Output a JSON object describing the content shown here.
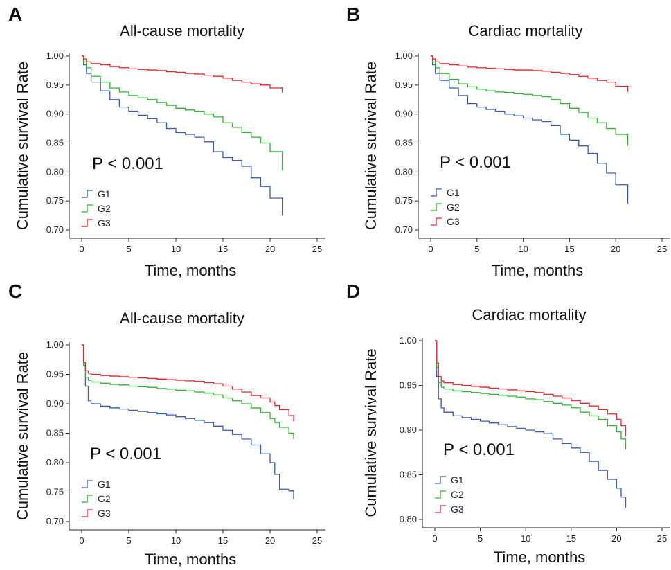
{
  "colors": {
    "G1": "#3a5ab8",
    "G2": "#2bb52b",
    "G3": "#e8262a"
  },
  "chart_data": [
    {
      "panel": "A",
      "type": "line",
      "title": "All-cause mortality",
      "xlabel": "Time, months",
      "ylabel": "Cumulative survival Rate",
      "xlim": [
        0,
        25
      ],
      "ylim": [
        0.7,
        1.0
      ],
      "xticks": [
        0,
        5,
        10,
        15,
        20,
        25
      ],
      "yticks": [
        0.7,
        0.75,
        0.8,
        0.85,
        0.9,
        0.95,
        1.0
      ],
      "annotation": "P < 0.001",
      "legend": [
        "G1",
        "G2",
        "G3"
      ],
      "legend_position": "bottom-left",
      "series": [
        {
          "name": "G1",
          "x": [
            0,
            0.2,
            0.5,
            1,
            2,
            3,
            4,
            5,
            6,
            7,
            8,
            9,
            10,
            11,
            12,
            13,
            14,
            15,
            16,
            17,
            18,
            19,
            20,
            21.3
          ],
          "y": [
            1.0,
            0.985,
            0.97,
            0.955,
            0.94,
            0.925,
            0.912,
            0.905,
            0.898,
            0.892,
            0.885,
            0.875,
            0.868,
            0.865,
            0.86,
            0.852,
            0.835,
            0.825,
            0.82,
            0.81,
            0.79,
            0.775,
            0.755,
            0.725
          ]
        },
        {
          "name": "G2",
          "x": [
            0,
            0.2,
            0.5,
            1,
            2,
            3,
            4,
            5,
            6,
            7,
            8,
            9,
            10,
            11,
            12,
            13,
            14,
            15,
            16,
            17,
            18,
            19,
            20,
            21.3
          ],
          "y": [
            1.0,
            0.99,
            0.98,
            0.965,
            0.955,
            0.945,
            0.938,
            0.932,
            0.928,
            0.925,
            0.92,
            0.915,
            0.91,
            0.907,
            0.905,
            0.9,
            0.895,
            0.885,
            0.877,
            0.868,
            0.86,
            0.85,
            0.835,
            0.803
          ]
        },
        {
          "name": "G3",
          "x": [
            0,
            0.2,
            0.5,
            1,
            2,
            3,
            4,
            5,
            6,
            7,
            8,
            9,
            10,
            11,
            12,
            13,
            14,
            15,
            16,
            17,
            18,
            19,
            20,
            21.3
          ],
          "y": [
            1.0,
            0.995,
            0.99,
            0.987,
            0.985,
            0.982,
            0.98,
            0.978,
            0.977,
            0.976,
            0.975,
            0.973,
            0.972,
            0.97,
            0.969,
            0.967,
            0.965,
            0.962,
            0.958,
            0.955,
            0.952,
            0.95,
            0.945,
            0.937
          ]
        }
      ]
    },
    {
      "panel": "B",
      "type": "line",
      "title": "Cardiac mortality",
      "xlabel": "Time, months",
      "ylabel": "Cumulative survival Rate",
      "xlim": [
        0,
        25
      ],
      "ylim": [
        0.7,
        1.0
      ],
      "xticks": [
        0,
        5,
        10,
        15,
        20,
        25
      ],
      "yticks": [
        0.7,
        0.75,
        0.8,
        0.85,
        0.9,
        0.95,
        1.0
      ],
      "annotation": "P < 0.001",
      "legend": [
        "G1",
        "G2",
        "G3"
      ],
      "legend_position": "bottom-left",
      "series": [
        {
          "name": "G1",
          "x": [
            0,
            0.2,
            0.5,
            1,
            2,
            3,
            4,
            5,
            6,
            7,
            8,
            9,
            10,
            11,
            12,
            13,
            14,
            15,
            16,
            17,
            18,
            19,
            20,
            21.3
          ],
          "y": [
            1.0,
            0.985,
            0.97,
            0.958,
            0.945,
            0.932,
            0.918,
            0.912,
            0.908,
            0.905,
            0.9,
            0.897,
            0.893,
            0.89,
            0.887,
            0.88,
            0.865,
            0.855,
            0.845,
            0.832,
            0.815,
            0.798,
            0.778,
            0.745
          ]
        },
        {
          "name": "G2",
          "x": [
            0,
            0.2,
            0.5,
            1,
            2,
            3,
            4,
            5,
            6,
            7,
            8,
            9,
            10,
            11,
            12,
            13,
            14,
            15,
            16,
            17,
            18,
            19,
            20,
            21.3
          ],
          "y": [
            1.0,
            0.99,
            0.98,
            0.97,
            0.96,
            0.952,
            0.947,
            0.943,
            0.94,
            0.938,
            0.937,
            0.935,
            0.934,
            0.932,
            0.93,
            0.925,
            0.918,
            0.91,
            0.903,
            0.893,
            0.885,
            0.875,
            0.865,
            0.845
          ]
        },
        {
          "name": "G3",
          "x": [
            0,
            0.2,
            0.5,
            1,
            2,
            3,
            4,
            5,
            6,
            7,
            8,
            9,
            10,
            11,
            12,
            13,
            14,
            15,
            16,
            17,
            18,
            19,
            20,
            21.3
          ],
          "y": [
            1.0,
            0.995,
            0.99,
            0.987,
            0.985,
            0.983,
            0.981,
            0.98,
            0.979,
            0.978,
            0.977,
            0.976,
            0.976,
            0.975,
            0.974,
            0.972,
            0.97,
            0.968,
            0.965,
            0.962,
            0.958,
            0.955,
            0.948,
            0.938
          ]
        }
      ]
    },
    {
      "panel": "C",
      "type": "line",
      "title": "All-cause mortality",
      "xlabel": "Time, months",
      "ylabel": "Cumulative survival Rate",
      "xlim": [
        0,
        25
      ],
      "ylim": [
        0.7,
        1.0
      ],
      "xticks": [
        0,
        5,
        10,
        15,
        20,
        25
      ],
      "yticks": [
        0.7,
        0.75,
        0.8,
        0.85,
        0.9,
        0.95,
        1.0
      ],
      "annotation": "P < 0.001",
      "legend": [
        "G1",
        "G2",
        "G3"
      ],
      "legend_position": "bottom-left",
      "series": [
        {
          "name": "G1",
          "x": [
            0,
            0.2,
            0.4,
            0.7,
            1,
            2,
            3,
            4,
            5,
            6,
            7,
            8,
            9,
            10,
            11,
            12,
            13,
            14,
            15,
            16,
            17,
            18,
            19,
            20,
            20.5,
            21,
            22,
            22.5
          ],
          "y": [
            1.0,
            0.97,
            0.93,
            0.905,
            0.9,
            0.896,
            0.893,
            0.891,
            0.889,
            0.887,
            0.885,
            0.883,
            0.881,
            0.878,
            0.875,
            0.872,
            0.868,
            0.862,
            0.855,
            0.848,
            0.84,
            0.83,
            0.815,
            0.8,
            0.78,
            0.755,
            0.752,
            0.738
          ]
        },
        {
          "name": "G2",
          "x": [
            0,
            0.2,
            0.4,
            0.7,
            1,
            2,
            3,
            4,
            5,
            6,
            7,
            8,
            9,
            10,
            11,
            12,
            13,
            14,
            15,
            16,
            17,
            18,
            19,
            20,
            20.5,
            21,
            22,
            22.5
          ],
          "y": [
            1.0,
            0.965,
            0.945,
            0.94,
            0.937,
            0.935,
            0.933,
            0.932,
            0.93,
            0.929,
            0.928,
            0.926,
            0.925,
            0.923,
            0.922,
            0.92,
            0.918,
            0.915,
            0.91,
            0.905,
            0.9,
            0.893,
            0.885,
            0.875,
            0.868,
            0.86,
            0.85,
            0.84
          ]
        },
        {
          "name": "G3",
          "x": [
            0,
            0.2,
            0.4,
            0.7,
            1,
            2,
            3,
            4,
            5,
            6,
            7,
            8,
            9,
            10,
            11,
            12,
            13,
            14,
            15,
            16,
            17,
            18,
            19,
            20,
            20.5,
            21,
            22,
            22.5
          ],
          "y": [
            1.0,
            0.97,
            0.956,
            0.952,
            0.95,
            0.948,
            0.947,
            0.946,
            0.945,
            0.944,
            0.943,
            0.942,
            0.941,
            0.94,
            0.939,
            0.938,
            0.936,
            0.934,
            0.93,
            0.925,
            0.92,
            0.914,
            0.91,
            0.903,
            0.897,
            0.89,
            0.88,
            0.87
          ]
        }
      ]
    },
    {
      "panel": "D",
      "type": "line",
      "title": "Cardiac mortality",
      "xlabel": "Time, months",
      "ylabel": "Cumulative survival Rate",
      "xlim": [
        0,
        25
      ],
      "ylim": [
        0.8,
        1.0
      ],
      "xticks": [
        0,
        5,
        10,
        15,
        20,
        25
      ],
      "yticks": [
        0.8,
        0.85,
        0.9,
        0.95,
        1.0
      ],
      "annotation": "P < 0.001",
      "legend": [
        "G1",
        "G2",
        "G3"
      ],
      "legend_position": "bottom-left",
      "series": [
        {
          "name": "G1",
          "x": [
            0,
            0.2,
            0.4,
            0.7,
            1,
            2,
            3,
            4,
            5,
            6,
            7,
            8,
            9,
            10,
            11,
            12,
            13,
            14,
            15,
            16,
            17,
            18,
            19,
            20,
            20.5,
            21
          ],
          "y": [
            1.0,
            0.96,
            0.935,
            0.925,
            0.92,
            0.916,
            0.914,
            0.912,
            0.91,
            0.908,
            0.906,
            0.904,
            0.902,
            0.9,
            0.898,
            0.896,
            0.89,
            0.885,
            0.88,
            0.875,
            0.865,
            0.855,
            0.845,
            0.835,
            0.825,
            0.813
          ]
        },
        {
          "name": "G2",
          "x": [
            0,
            0.2,
            0.4,
            0.7,
            1,
            2,
            3,
            4,
            5,
            6,
            7,
            8,
            9,
            10,
            11,
            12,
            13,
            14,
            15,
            16,
            17,
            18,
            19,
            20,
            20.5,
            21
          ],
          "y": [
            1.0,
            0.97,
            0.953,
            0.948,
            0.946,
            0.944,
            0.943,
            0.942,
            0.941,
            0.94,
            0.939,
            0.938,
            0.937,
            0.935,
            0.934,
            0.932,
            0.93,
            0.928,
            0.925,
            0.92,
            0.916,
            0.912,
            0.905,
            0.898,
            0.89,
            0.878
          ]
        },
        {
          "name": "G3",
          "x": [
            0,
            0.2,
            0.4,
            0.7,
            1,
            2,
            3,
            4,
            5,
            6,
            7,
            8,
            9,
            10,
            11,
            12,
            13,
            14,
            15,
            16,
            17,
            18,
            19,
            20,
            20.5,
            21
          ],
          "y": [
            1.0,
            0.975,
            0.96,
            0.955,
            0.953,
            0.951,
            0.95,
            0.949,
            0.948,
            0.947,
            0.946,
            0.945,
            0.944,
            0.943,
            0.942,
            0.94,
            0.938,
            0.936,
            0.933,
            0.93,
            0.927,
            0.923,
            0.918,
            0.912,
            0.905,
            0.893
          ]
        }
      ]
    }
  ]
}
